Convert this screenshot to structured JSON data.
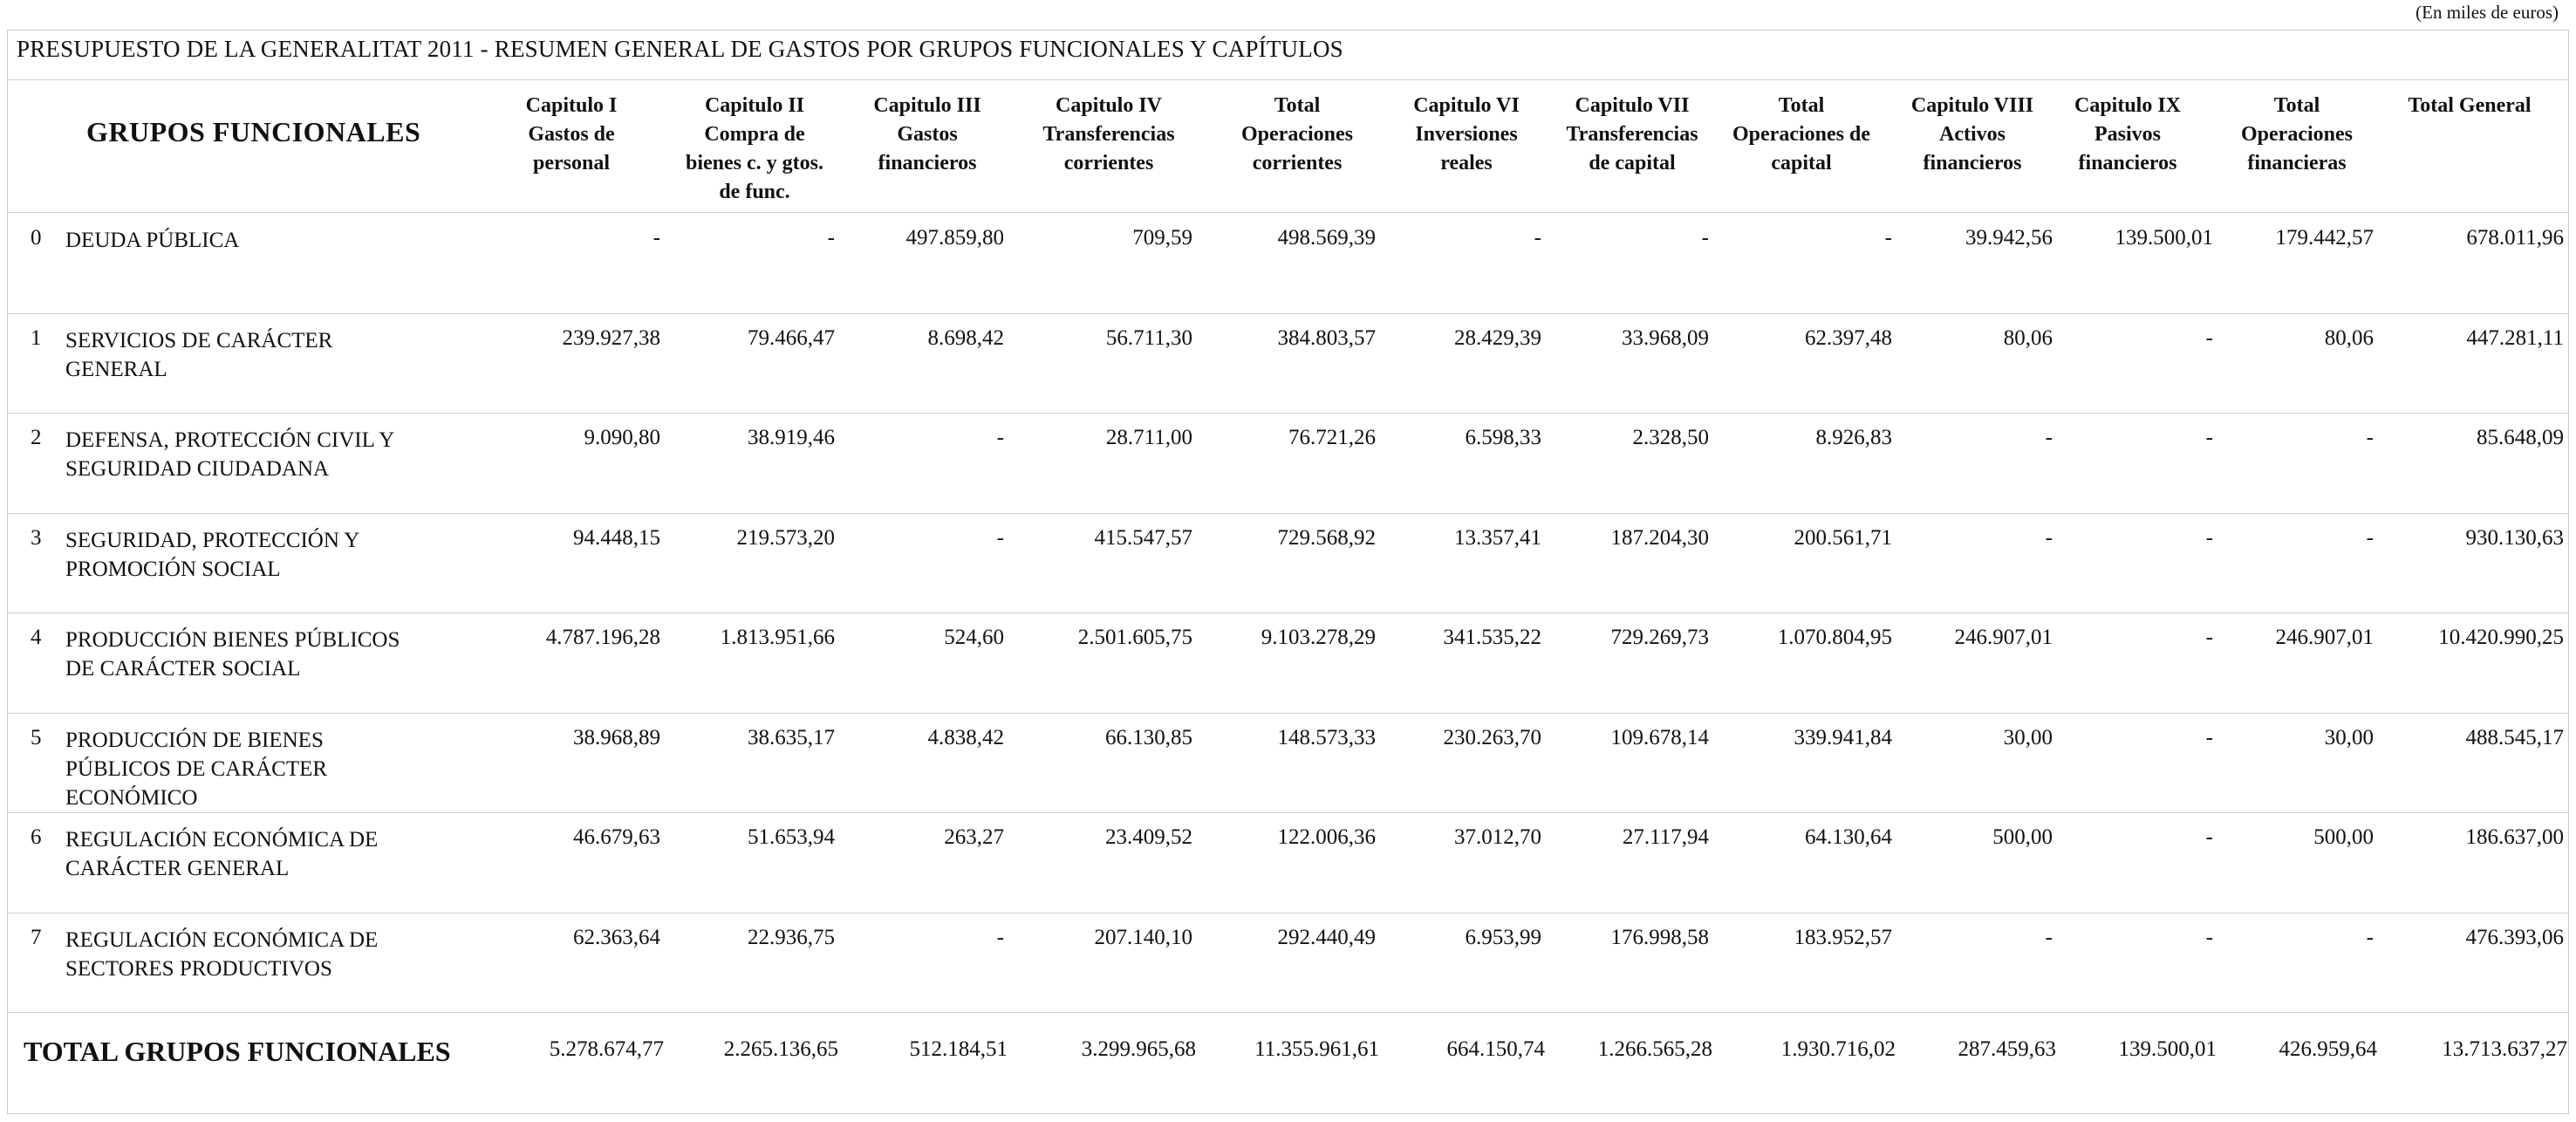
{
  "units_note": "(En miles de euros)",
  "title": "PRESUPUESTO DE LA GENERALITAT 2011 - RESUMEN GENERAL DE GASTOS POR GRUPOS FUNCIONALES Y CAPÍTULOS",
  "group_header": "GRUPOS FUNCIONALES",
  "columns": [
    [
      "Capitulo I",
      "Gastos de",
      "personal"
    ],
    [
      "Capitulo II",
      "Compra de",
      "bienes c. y gtos.",
      "de func."
    ],
    [
      "Capitulo III",
      "Gastos",
      "financieros"
    ],
    [
      "Capitulo IV",
      "Transferencias",
      "corrientes"
    ],
    [
      "Total",
      "Operaciones",
      "corrientes"
    ],
    [
      "Capitulo VI",
      "Inversiones",
      "reales"
    ],
    [
      "Capitulo VII",
      "Transferencias",
      "de capital"
    ],
    [
      "Total",
      "Operaciones de",
      "capital"
    ],
    [
      "Capitulo VIII",
      "Activos",
      "financieros"
    ],
    [
      "Capitulo IX",
      "Pasivos",
      "financieros"
    ],
    [
      "Total",
      "Operaciones",
      "financieras"
    ],
    [
      "Total General"
    ]
  ],
  "rows": [
    {
      "idx": "0",
      "name": [
        "DEUDA PÚBLICA"
      ],
      "values": [
        "-",
        "-",
        "497.859,80",
        "709,59",
        "498.569,39",
        "-",
        "-",
        "-",
        "39.942,56",
        "139.500,01",
        "179.442,57",
        "678.011,96"
      ]
    },
    {
      "idx": "1",
      "name": [
        "SERVICIOS DE CARÁCTER",
        "GENERAL"
      ],
      "values": [
        "239.927,38",
        "79.466,47",
        "8.698,42",
        "56.711,30",
        "384.803,57",
        "28.429,39",
        "33.968,09",
        "62.397,48",
        "80,06",
        "-",
        "80,06",
        "447.281,11"
      ]
    },
    {
      "idx": "2",
      "name": [
        "DEFENSA, PROTECCIÓN CIVIL Y",
        "SEGURIDAD CIUDADANA"
      ],
      "values": [
        "9.090,80",
        "38.919,46",
        "-",
        "28.711,00",
        "76.721,26",
        "6.598,33",
        "2.328,50",
        "8.926,83",
        "-",
        "-",
        "-",
        "85.648,09"
      ]
    },
    {
      "idx": "3",
      "name": [
        "SEGURIDAD, PROTECCIÓN Y",
        "PROMOCIÓN SOCIAL"
      ],
      "values": [
        "94.448,15",
        "219.573,20",
        "-",
        "415.547,57",
        "729.568,92",
        "13.357,41",
        "187.204,30",
        "200.561,71",
        "-",
        "-",
        "-",
        "930.130,63"
      ]
    },
    {
      "idx": "4",
      "name": [
        "PRODUCCIÓN BIENES PÚBLICOS",
        "DE CARÁCTER SOCIAL"
      ],
      "values": [
        "4.787.196,28",
        "1.813.951,66",
        "524,60",
        "2.501.605,75",
        "9.103.278,29",
        "341.535,22",
        "729.269,73",
        "1.070.804,95",
        "246.907,01",
        "-",
        "246.907,01",
        "10.420.990,25"
      ]
    },
    {
      "idx": "5",
      "name": [
        "PRODUCCIÓN DE BIENES",
        "PÚBLICOS DE CARÁCTER",
        "ECONÓMICO"
      ],
      "values": [
        "38.968,89",
        "38.635,17",
        "4.838,42",
        "66.130,85",
        "148.573,33",
        "230.263,70",
        "109.678,14",
        "339.941,84",
        "30,00",
        "-",
        "30,00",
        "488.545,17"
      ]
    },
    {
      "idx": "6",
      "name": [
        "REGULACIÓN ECONÓMICA DE",
        "CARÁCTER GENERAL"
      ],
      "values": [
        "46.679,63",
        "51.653,94",
        "263,27",
        "23.409,52",
        "122.006,36",
        "37.012,70",
        "27.117,94",
        "64.130,64",
        "500,00",
        "-",
        "500,00",
        "186.637,00"
      ]
    },
    {
      "idx": "7",
      "name": [
        "REGULACIÓN ECONÓMICA DE",
        "SECTORES PRODUCTIVOS"
      ],
      "values": [
        "62.363,64",
        "22.936,75",
        "-",
        "207.140,10",
        "292.440,49",
        "6.953,99",
        "176.998,58",
        "183.952,57",
        "-",
        "-",
        "-",
        "476.393,06"
      ]
    }
  ],
  "total": {
    "label": "TOTAL GRUPOS FUNCIONALES",
    "values": [
      "5.278.674,77",
      "2.265.136,65",
      "512.184,51",
      "3.299.965,68",
      "11.355.961,61",
      "664.150,74",
      "1.266.565,28",
      "1.930.716,02",
      "287.459,63",
      "139.500,01",
      "426.959,64",
      "13.713.637,27"
    ]
  }
}
